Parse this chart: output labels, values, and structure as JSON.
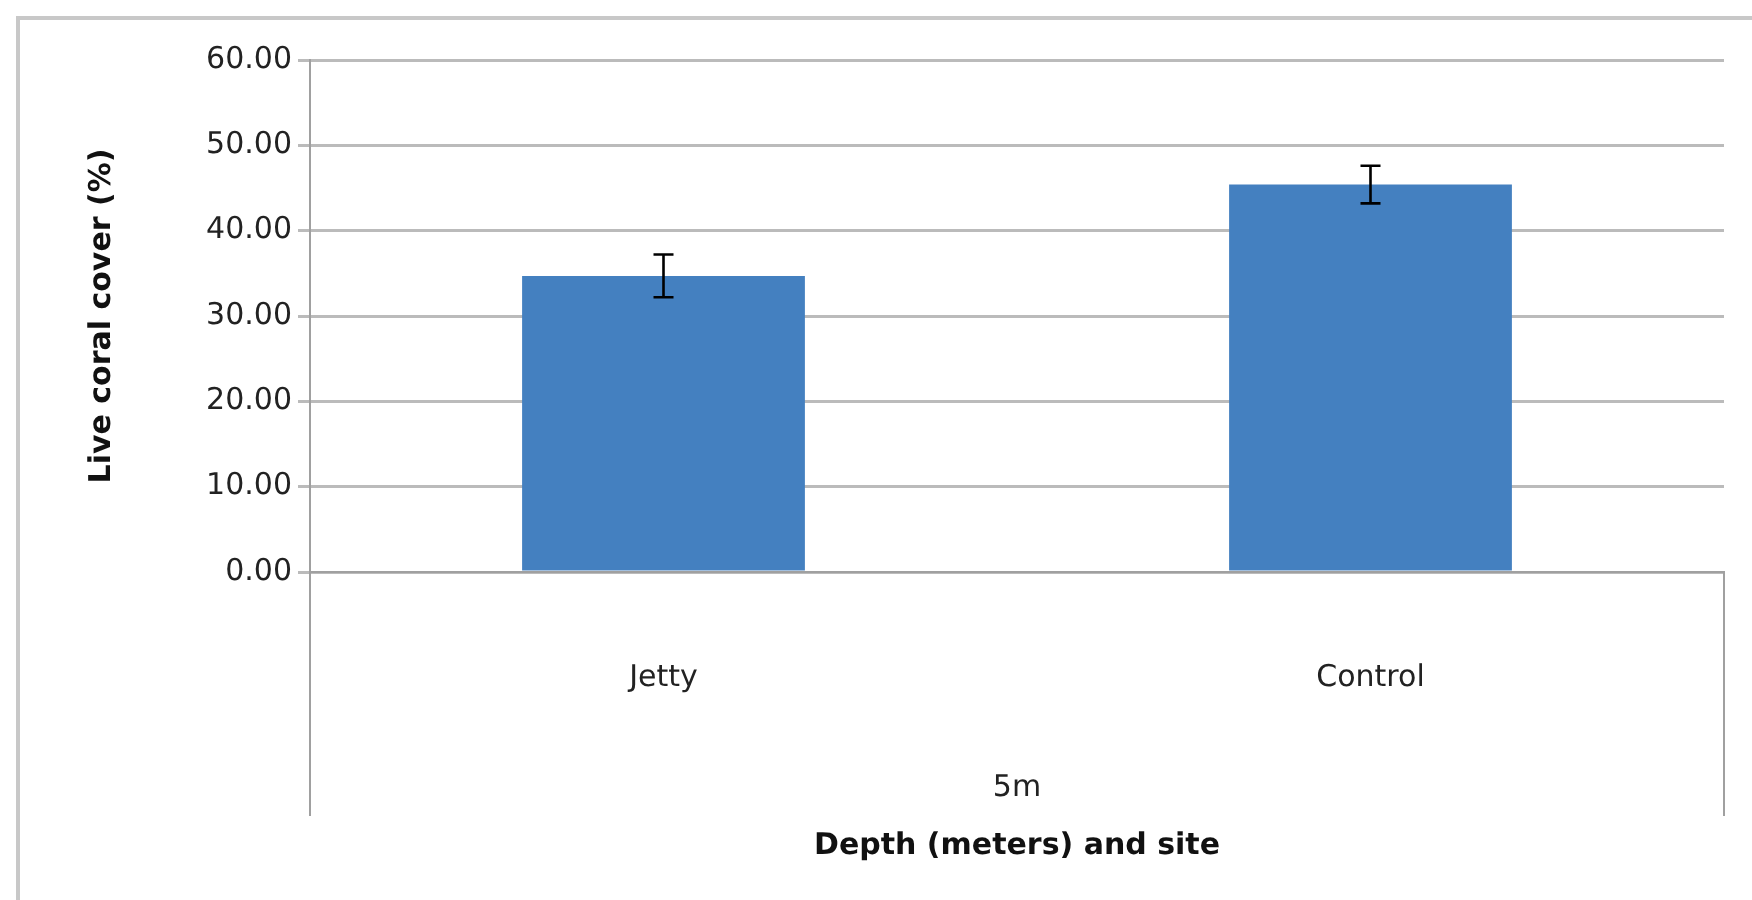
{
  "chart_data": {
    "type": "bar",
    "xlabel": "Depth (meters) and site",
    "ylabel": "Live coral cover (%)",
    "categories": [
      "Jetty",
      "Control"
    ],
    "values": [
      34.7,
      45.4
    ],
    "errors": [
      2.5,
      2.2
    ],
    "color": "#4480c0",
    "ylim": [
      0,
      60
    ],
    "yticks": [
      {
        "value": 0,
        "label": "0.00"
      },
      {
        "value": 10,
        "label": "10.00"
      },
      {
        "value": 20,
        "label": "20.00"
      },
      {
        "value": 30,
        "label": "30.00"
      },
      {
        "value": 40,
        "label": "40.00"
      },
      {
        "value": 50,
        "label": "50.00"
      },
      {
        "value": 60,
        "label": "60.00"
      }
    ],
    "grid": "y",
    "legend": false,
    "annotations": [
      "5m"
    ]
  }
}
